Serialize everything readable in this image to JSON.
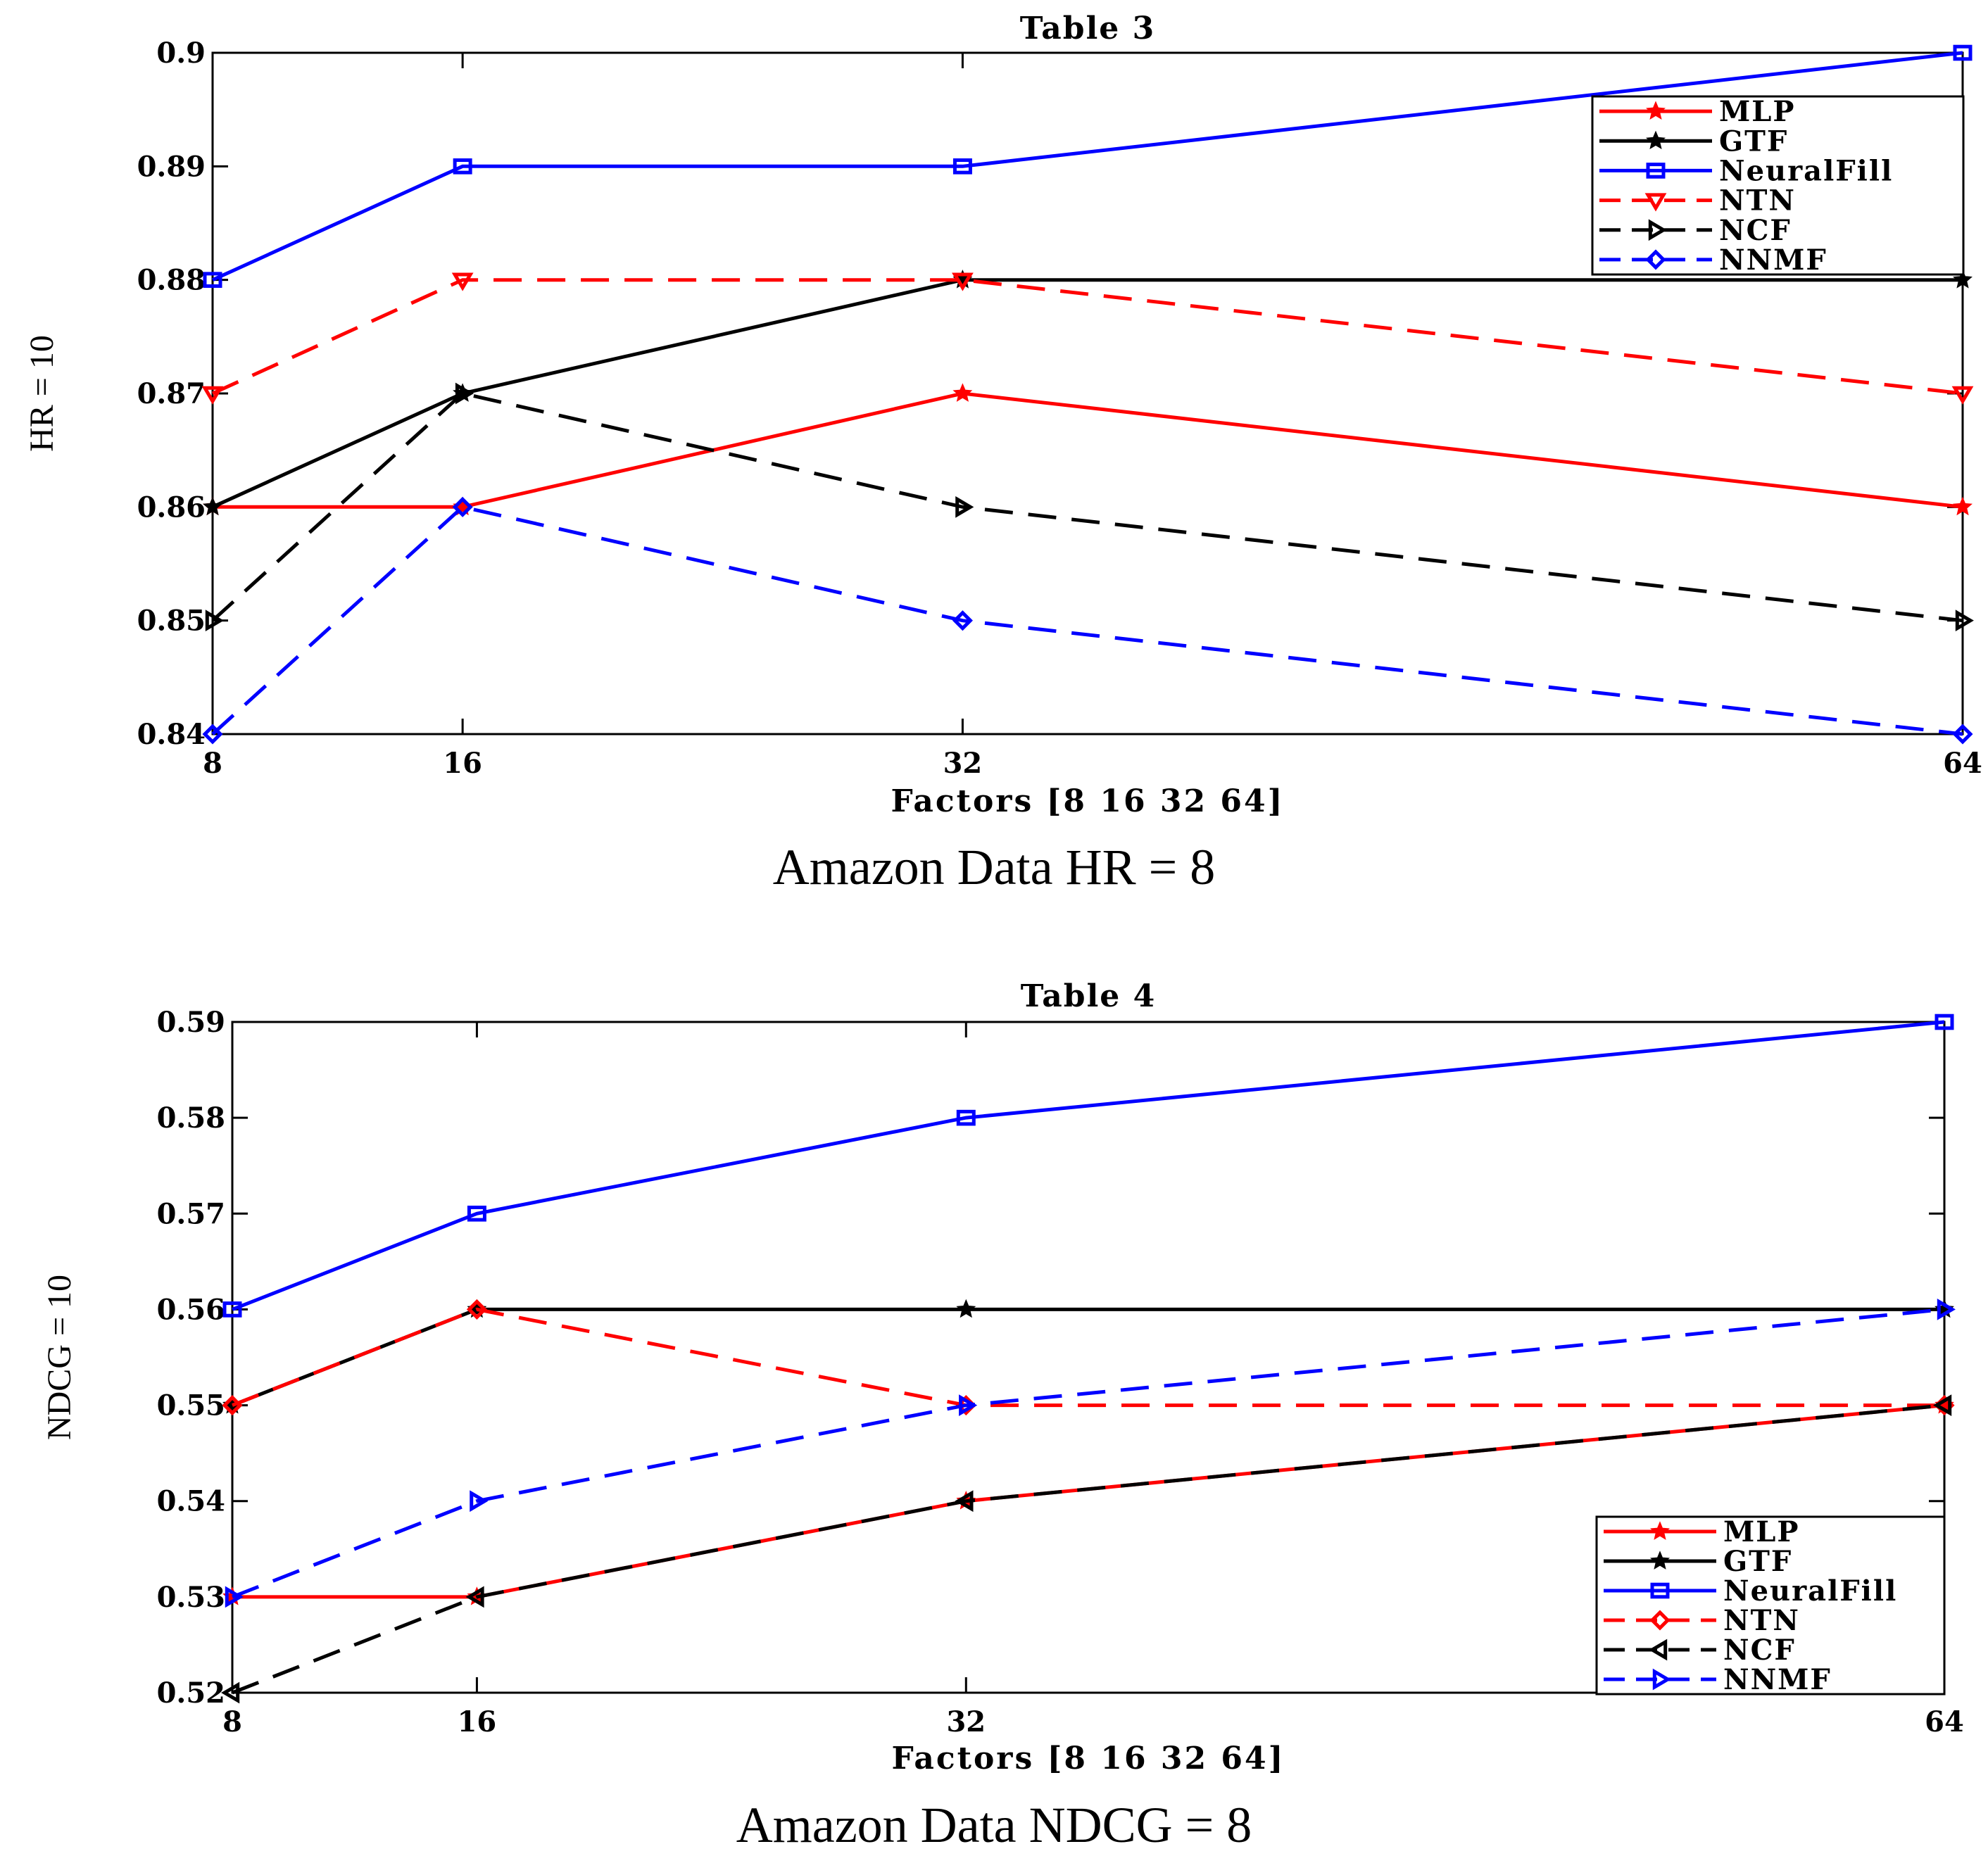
{
  "chart_data": [
    {
      "type": "line",
      "title": "Table 3",
      "xlabel": "Factors [8 16 32 64]",
      "ylabel": "HR = 10",
      "caption": "Amazon Data HR = 8",
      "x": [
        8,
        16,
        32,
        64
      ],
      "x_ticks": [
        "8",
        "16",
        "32",
        "64"
      ],
      "ylim": [
        0.84,
        0.9
      ],
      "y_ticks": [
        "0.84",
        "0.85",
        "0.86",
        "0.87",
        "0.88",
        "0.89",
        "0.9"
      ],
      "legend_position": "top-right",
      "series": [
        {
          "name": "MLP",
          "values": [
            0.86,
            0.86,
            0.87,
            0.86
          ],
          "color": "#ff0000",
          "dash": "solid",
          "marker": "star"
        },
        {
          "name": "GTF",
          "values": [
            0.86,
            0.87,
            0.88,
            0.88
          ],
          "color": "#000000",
          "dash": "solid",
          "marker": "star"
        },
        {
          "name": "NeuralFill",
          "values": [
            0.88,
            0.89,
            0.89,
            0.9
          ],
          "color": "#0000ff",
          "dash": "solid",
          "marker": "square"
        },
        {
          "name": "NTN",
          "values": [
            0.87,
            0.88,
            0.88,
            0.87
          ],
          "color": "#ff0000",
          "dash": "dashed",
          "marker": "triangle-down"
        },
        {
          "name": "NCF",
          "values": [
            0.85,
            0.87,
            0.86,
            0.85
          ],
          "color": "#000000",
          "dash": "dashed",
          "marker": "triangle-right"
        },
        {
          "name": "NNMF",
          "values": [
            0.84,
            0.86,
            0.85,
            0.84
          ],
          "color": "#0000ff",
          "dash": "dashed",
          "marker": "diamond"
        }
      ]
    },
    {
      "type": "line",
      "title": "Table 4",
      "xlabel": "Factors [8 16 32 64]",
      "ylabel": "NDCG = 10",
      "caption": "Amazon Data NDCG = 8",
      "x": [
        8,
        16,
        32,
        64
      ],
      "x_ticks": [
        "8",
        "16",
        "32",
        "64"
      ],
      "ylim": [
        0.52,
        0.59
      ],
      "y_ticks": [
        "0.52",
        "0.53",
        "0.54",
        "0.55",
        "0.56",
        "0.57",
        "0.58",
        "0.59"
      ],
      "legend_position": "bottom-right",
      "series": [
        {
          "name": "MLP",
          "values": [
            0.53,
            0.53,
            0.54,
            0.55
          ],
          "color": "#ff0000",
          "dash": "solid",
          "marker": "star"
        },
        {
          "name": "GTF",
          "values": [
            0.55,
            0.56,
            0.56,
            0.56
          ],
          "color": "#000000",
          "dash": "solid",
          "marker": "star"
        },
        {
          "name": "NeuralFill",
          "values": [
            0.56,
            0.57,
            0.58,
            0.59
          ],
          "color": "#0000ff",
          "dash": "solid",
          "marker": "square"
        },
        {
          "name": "NTN",
          "values": [
            0.55,
            0.56,
            0.55,
            0.55
          ],
          "color": "#ff0000",
          "dash": "dashed",
          "marker": "diamond"
        },
        {
          "name": "NCF",
          "values": [
            0.52,
            0.53,
            0.54,
            0.55
          ],
          "color": "#000000",
          "dash": "dashed",
          "marker": "triangle-left"
        },
        {
          "name": "NNMF",
          "values": [
            0.53,
            0.54,
            0.55,
            0.56
          ],
          "color": "#0000ff",
          "dash": "dashed",
          "marker": "triangle-right"
        }
      ]
    }
  ]
}
